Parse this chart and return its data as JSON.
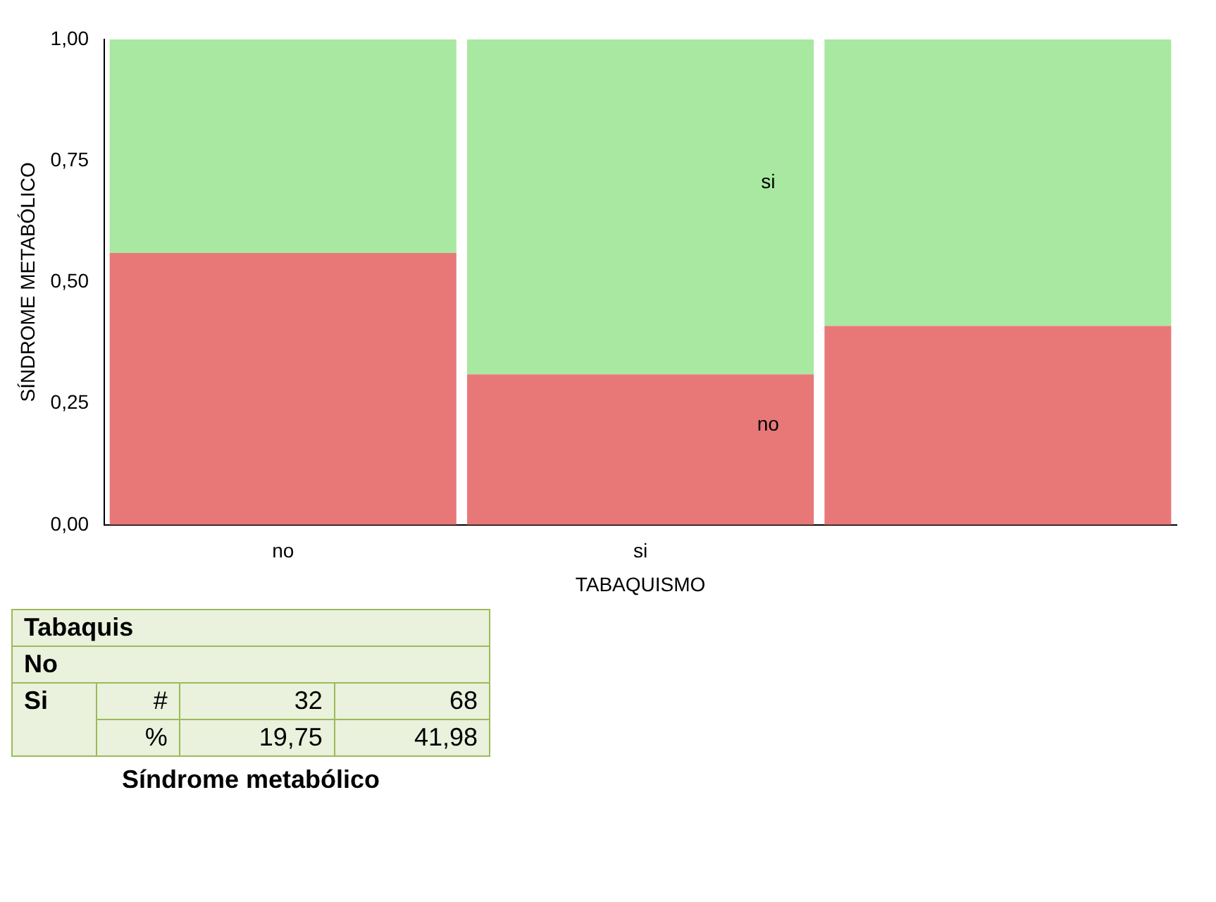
{
  "chart_data": {
    "type": "bar",
    "stacked": true,
    "xlabel": "TABAQUISMO",
    "ylabel": "SÍNDROME METABÓLICO",
    "categories": [
      "no",
      "si",
      null
    ],
    "series": [
      {
        "name": "no",
        "color": "#e87878",
        "values": [
          0.56,
          0.31,
          0.41
        ]
      },
      {
        "name": "si",
        "color": "#a8e8a0",
        "values": [
          0.44,
          0.69,
          0.59
        ]
      }
    ],
    "ylim": [
      0,
      1
    ],
    "yticks": [
      {
        "value": 0,
        "label": "0,00"
      },
      {
        "value": 0.25,
        "label": "0,25"
      },
      {
        "value": 0.5,
        "label": "0,50"
      },
      {
        "value": 0.75,
        "label": "0,75"
      },
      {
        "value": 1,
        "label": "1,00"
      }
    ],
    "grid": false,
    "legend": false,
    "annotations": [
      "Tabaquis",
      "No",
      "Si",
      "#",
      "32",
      "68",
      "%",
      "19,75",
      "41,98",
      "Síndrome metabólico"
    ]
  }
}
